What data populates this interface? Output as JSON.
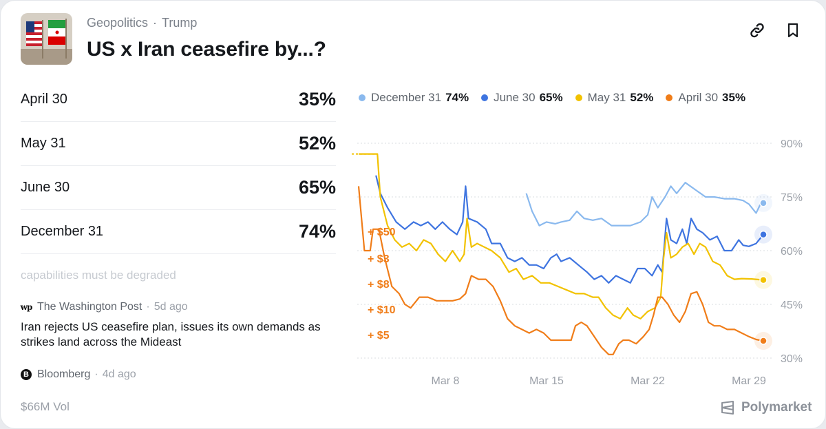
{
  "header": {
    "category": "Geopolitics",
    "tag": "Trump",
    "separator": "·",
    "title": "US x Iran ceasefire by...?"
  },
  "outcomes": [
    {
      "label": "April 30",
      "pct": "35%"
    },
    {
      "label": "May 31",
      "pct": "52%"
    },
    {
      "label": "June 30",
      "pct": "65%"
    },
    {
      "label": "December 31",
      "pct": "74%"
    }
  ],
  "news": {
    "faded_text": "capabilities must be degraded",
    "items": [
      {
        "source": "The Washington Post",
        "ago": "5d ago",
        "icon": "washington-post-icon",
        "icon_glyph": "wp",
        "headline": "Iran rejects US ceasefire plan, issues its own demands as strikes land across the Mideast"
      },
      {
        "source": "Bloomberg",
        "ago": "4d ago",
        "icon": "bloomberg-icon",
        "icon_glyph": "B",
        "headline": ""
      }
    ]
  },
  "footer": {
    "volume": "$66M Vol",
    "brand": "Polymarket"
  },
  "colors": {
    "dec31": "#8ab9ee",
    "jun30": "#3e74e0",
    "may31": "#f2c200",
    "apr30": "#f07d19",
    "axis_text": "#9ba0a8",
    "trade_label": "#f07d19"
  },
  "chart_data": {
    "type": "line",
    "title": "",
    "xlabel": "",
    "ylabel": "",
    "ylim": [
      30,
      90
    ],
    "x_range": [
      0,
      28
    ],
    "x_ticks": [
      {
        "label": "Mar 8",
        "x": 6
      },
      {
        "label": "Mar 15",
        "x": 13
      },
      {
        "label": "Mar 22",
        "x": 20
      },
      {
        "label": "Mar 29",
        "x": 27
      }
    ],
    "y_ticks": [
      {
        "label": "90%",
        "value": 90
      },
      {
        "label": "75%",
        "value": 75
      },
      {
        "label": "60%",
        "value": 60
      },
      {
        "label": "45%",
        "value": 45
      },
      {
        "label": "30%",
        "value": 30
      }
    ],
    "grid": "horizontal-dotted",
    "legend_position": "top",
    "legend": [
      {
        "name": "December 31",
        "value": "74%",
        "key": "dec31"
      },
      {
        "name": "June 30",
        "value": "65%",
        "key": "jun30"
      },
      {
        "name": "May 31",
        "value": "52%",
        "key": "may31"
      },
      {
        "name": "April 30",
        "value": "35%",
        "key": "apr30"
      }
    ],
    "trade_labels": [
      "+ $50",
      "+ $3",
      "+ $8",
      "+ $10",
      "+ $5"
    ],
    "series": [
      {
        "name": "December 31",
        "key": "dec31",
        "points": [
          [
            11.6,
            76
          ],
          [
            12.0,
            71
          ],
          [
            12.5,
            67
          ],
          [
            13.0,
            68
          ],
          [
            13.6,
            67.5
          ],
          [
            14.0,
            68
          ],
          [
            14.6,
            68.5
          ],
          [
            15.1,
            71
          ],
          [
            15.6,
            69
          ],
          [
            16.2,
            68.5
          ],
          [
            16.8,
            69
          ],
          [
            17.5,
            67
          ],
          [
            18.2,
            67
          ],
          [
            18.8,
            67
          ],
          [
            19.5,
            68
          ],
          [
            20.0,
            70
          ],
          [
            20.3,
            75
          ],
          [
            20.7,
            72
          ],
          [
            21.2,
            75
          ],
          [
            21.6,
            78
          ],
          [
            22.0,
            76
          ],
          [
            22.6,
            79
          ],
          [
            23.3,
            77
          ],
          [
            24.0,
            75
          ],
          [
            24.6,
            75
          ],
          [
            25.3,
            74.5
          ],
          [
            26.0,
            74.5
          ],
          [
            26.6,
            74
          ],
          [
            27.0,
            73
          ],
          [
            27.5,
            70.5
          ],
          [
            27.8,
            73
          ],
          [
            28.0,
            73.3
          ]
        ]
      },
      {
        "name": "June 30",
        "key": "jun30",
        "points": [
          [
            1.2,
            81
          ],
          [
            1.5,
            76
          ],
          [
            2.0,
            72
          ],
          [
            2.6,
            68
          ],
          [
            3.2,
            66
          ],
          [
            3.8,
            68
          ],
          [
            4.3,
            67
          ],
          [
            4.8,
            68
          ],
          [
            5.3,
            66
          ],
          [
            5.8,
            68
          ],
          [
            6.3,
            66
          ],
          [
            6.8,
            64.5
          ],
          [
            7.2,
            68
          ],
          [
            7.4,
            78
          ],
          [
            7.6,
            69
          ],
          [
            8.2,
            68
          ],
          [
            8.8,
            66
          ],
          [
            9.2,
            62
          ],
          [
            9.8,
            62
          ],
          [
            10.3,
            58
          ],
          [
            10.8,
            57
          ],
          [
            11.3,
            58
          ],
          [
            11.8,
            56
          ],
          [
            12.3,
            56
          ],
          [
            12.8,
            55
          ],
          [
            13.3,
            58
          ],
          [
            13.7,
            59
          ],
          [
            14.0,
            57
          ],
          [
            14.6,
            58
          ],
          [
            15.2,
            56
          ],
          [
            15.8,
            54
          ],
          [
            16.3,
            52
          ],
          [
            16.8,
            53
          ],
          [
            17.3,
            51
          ],
          [
            17.8,
            53
          ],
          [
            18.3,
            52
          ],
          [
            18.8,
            51
          ],
          [
            19.3,
            55
          ],
          [
            19.8,
            55
          ],
          [
            20.3,
            53
          ],
          [
            20.7,
            56
          ],
          [
            21.0,
            54
          ],
          [
            21.3,
            69
          ],
          [
            21.6,
            63
          ],
          [
            22.0,
            62
          ],
          [
            22.4,
            66
          ],
          [
            22.7,
            62
          ],
          [
            23.0,
            69
          ],
          [
            23.4,
            66
          ],
          [
            23.8,
            65
          ],
          [
            24.3,
            63
          ],
          [
            24.8,
            64
          ],
          [
            25.3,
            60
          ],
          [
            25.8,
            60
          ],
          [
            26.3,
            63
          ],
          [
            26.6,
            61.5
          ],
          [
            27.0,
            61.2
          ],
          [
            27.5,
            62
          ],
          [
            28.0,
            64.5
          ]
        ]
      },
      {
        "name": "May 31",
        "key": "may31",
        "points": [
          [
            0,
            87
          ],
          [
            1.0,
            87
          ],
          [
            1.3,
            87
          ],
          [
            1.5,
            75
          ],
          [
            2.0,
            67
          ],
          [
            2.5,
            63
          ],
          [
            3.0,
            61
          ],
          [
            3.5,
            62
          ],
          [
            4.0,
            60
          ],
          [
            4.5,
            63
          ],
          [
            5.0,
            62
          ],
          [
            5.5,
            59
          ],
          [
            6.0,
            57
          ],
          [
            6.5,
            60
          ],
          [
            7.0,
            57
          ],
          [
            7.3,
            59
          ],
          [
            7.5,
            69
          ],
          [
            7.8,
            61
          ],
          [
            8.2,
            62
          ],
          [
            8.7,
            61
          ],
          [
            9.2,
            60
          ],
          [
            9.8,
            58
          ],
          [
            10.4,
            54
          ],
          [
            10.9,
            55
          ],
          [
            11.4,
            52
          ],
          [
            12.0,
            53
          ],
          [
            12.6,
            51
          ],
          [
            13.2,
            51
          ],
          [
            13.8,
            50
          ],
          [
            14.4,
            49
          ],
          [
            15.0,
            48
          ],
          [
            15.6,
            48
          ],
          [
            16.2,
            47
          ],
          [
            16.6,
            47
          ],
          [
            17.1,
            44
          ],
          [
            17.6,
            42
          ],
          [
            18.1,
            41
          ],
          [
            18.6,
            44
          ],
          [
            19.0,
            42
          ],
          [
            19.5,
            41
          ],
          [
            20.0,
            43
          ],
          [
            20.5,
            44
          ],
          [
            20.9,
            47
          ],
          [
            21.1,
            58
          ],
          [
            21.3,
            65
          ],
          [
            21.6,
            58
          ],
          [
            22.0,
            59
          ],
          [
            22.4,
            61
          ],
          [
            22.8,
            62
          ],
          [
            23.2,
            59
          ],
          [
            23.6,
            62
          ],
          [
            24.0,
            61
          ],
          [
            24.5,
            57
          ],
          [
            25.0,
            56
          ],
          [
            25.5,
            53
          ],
          [
            26.0,
            52
          ],
          [
            26.5,
            52.2
          ],
          [
            27.2,
            52.1
          ],
          [
            28.0,
            51.8
          ]
        ]
      },
      {
        "name": "April 30",
        "key": "apr30",
        "points": [
          [
            0,
            78
          ],
          [
            0.4,
            60
          ],
          [
            0.8,
            60
          ],
          [
            1.0,
            66
          ],
          [
            1.4,
            66
          ],
          [
            1.8,
            58
          ],
          [
            2.3,
            50
          ],
          [
            2.8,
            48
          ],
          [
            3.2,
            45
          ],
          [
            3.6,
            44
          ],
          [
            4.2,
            47
          ],
          [
            4.8,
            47
          ],
          [
            5.4,
            46
          ],
          [
            6.0,
            46
          ],
          [
            6.5,
            46
          ],
          [
            7.0,
            46.5
          ],
          [
            7.4,
            48
          ],
          [
            7.8,
            53
          ],
          [
            8.3,
            52
          ],
          [
            8.8,
            52
          ],
          [
            9.3,
            50
          ],
          [
            9.8,
            46
          ],
          [
            10.3,
            41
          ],
          [
            10.8,
            39
          ],
          [
            11.3,
            38
          ],
          [
            11.8,
            37
          ],
          [
            12.3,
            38
          ],
          [
            12.8,
            37
          ],
          [
            13.3,
            35
          ],
          [
            13.8,
            35
          ],
          [
            14.3,
            35
          ],
          [
            14.7,
            35
          ],
          [
            15.0,
            39
          ],
          [
            15.4,
            40
          ],
          [
            15.8,
            39
          ],
          [
            16.3,
            36
          ],
          [
            16.8,
            33
          ],
          [
            17.3,
            31
          ],
          [
            17.6,
            31
          ],
          [
            18.0,
            34
          ],
          [
            18.3,
            35
          ],
          [
            18.7,
            35
          ],
          [
            19.2,
            34
          ],
          [
            19.7,
            36
          ],
          [
            20.1,
            38
          ],
          [
            20.4,
            42
          ],
          [
            20.7,
            47
          ],
          [
            21.0,
            47
          ],
          [
            21.4,
            45
          ],
          [
            21.8,
            42
          ],
          [
            22.2,
            40
          ],
          [
            22.6,
            43
          ],
          [
            23.0,
            48
          ],
          [
            23.4,
            48.5
          ],
          [
            23.8,
            45
          ],
          [
            24.2,
            40
          ],
          [
            24.6,
            39
          ],
          [
            25.0,
            39
          ],
          [
            25.5,
            38
          ],
          [
            26.0,
            38
          ],
          [
            26.5,
            37
          ],
          [
            27.0,
            36
          ],
          [
            27.5,
            35.2
          ],
          [
            28.0,
            34.8
          ]
        ]
      }
    ]
  }
}
